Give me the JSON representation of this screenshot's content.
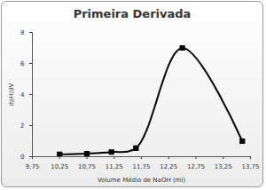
{
  "chart_data": {
    "type": "line",
    "title": "Primeira Derivada",
    "x_label": "Volume Médio de NaOH (ml)",
    "y_label": "dpH/dV",
    "x": [
      10.25,
      10.75,
      11.2,
      11.65,
      12.5,
      13.6
    ],
    "values": [
      0.15,
      0.2,
      0.3,
      0.55,
      7.0,
      1.0
    ],
    "color": "#000000",
    "marker": "square",
    "line_style": "smooth",
    "xlim": [
      9.75,
      13.75
    ],
    "xticks": [
      {
        "value": 9.75,
        "label": "9,75"
      },
      {
        "value": 10.25,
        "label": "10,25"
      },
      {
        "value": 10.75,
        "label": "10,75"
      },
      {
        "value": 11.25,
        "label": "11,25"
      },
      {
        "value": 11.75,
        "label": "11,75"
      },
      {
        "value": 12.25,
        "label": "12,25"
      },
      {
        "value": 12.75,
        "label": "12,75"
      },
      {
        "value": 13.25,
        "label": "13,25"
      },
      {
        "value": 13.75,
        "label": "13,75"
      }
    ],
    "ylim": [
      0,
      8
    ],
    "yticks": [
      0,
      2,
      4,
      6,
      8
    ],
    "grid": false
  }
}
